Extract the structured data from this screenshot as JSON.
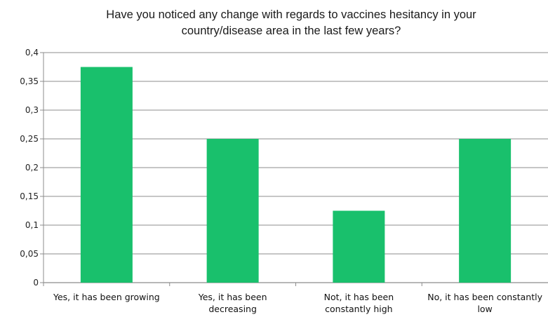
{
  "chart_data": {
    "type": "bar",
    "title_lines": [
      "Have you noticed any change with regards to vaccines hesitancy in your",
      "country/disease area in the last few years?"
    ],
    "categories": [
      [
        "Yes, it has been growing"
      ],
      [
        "Yes, it has been",
        "decreasing"
      ],
      [
        "Not, it has been",
        "constantly high"
      ],
      [
        "No, it has been constantly",
        "low"
      ]
    ],
    "values": [
      0.375,
      0.25,
      0.125,
      0.25
    ],
    "ylim": [
      0,
      0.4
    ],
    "yticks": [
      0,
      0.05,
      0.1,
      0.15,
      0.2,
      0.25,
      0.3,
      0.35,
      0.4
    ],
    "ytick_labels": [
      "0",
      "0,05",
      "0,1",
      "0,15",
      "0,2",
      "0,25",
      "0,3",
      "0,35",
      "0,4"
    ],
    "grid": true,
    "xlabel": "",
    "ylabel": "",
    "bar_color": "#19c06c",
    "grid_color": "#8c8c8c"
  }
}
